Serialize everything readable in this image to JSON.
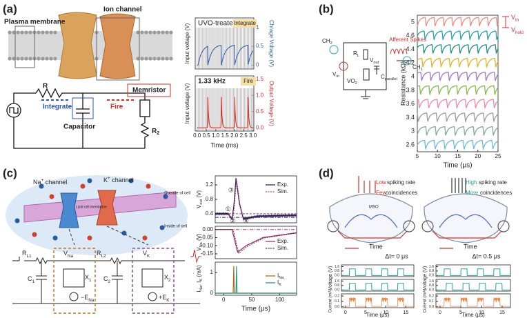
{
  "a": {
    "label": "(a)",
    "plasma_membrane": "Plasma membrane",
    "ion_channel": "Ion channel",
    "r": "R",
    "integrate": "Integrate",
    "fire": "Fire",
    "capacitor": "Capacitor",
    "memristor": "Memristor",
    "r2": [
      "R",
      {
        "sub": "2"
      }
    ],
    "top": {
      "title": "UVO-treated",
      "tag": "Integrate",
      "ylabel": "Input voltage (V)",
      "y2label": "Chrage Voltage (V)",
      "y2lim": [
        -0.1,
        1.25
      ],
      "y2ticks": [
        0,
        0.5,
        1
      ]
    },
    "bottom": {
      "title": "1.33 kHz",
      "tag": "Fire",
      "ylabel": "Input voltage (V)",
      "y2label": "Output Voltage (V)",
      "y2lim": [
        -0.1,
        1.6
      ],
      "y2ticks": [
        {
          "value": 0,
          "label": "0.0"
        },
        0.5,
        {
          "value": 1,
          "label": "1.0"
        },
        1.5
      ],
      "xlabel": "Time (ms)",
      "xlim": [
        -0.1,
        3.05
      ],
      "xticks": [
        {
          "value": 0,
          "label": "0.0"
        },
        0.5,
        {
          "value": 1,
          "label": "1.0"
        },
        1.5,
        {
          "value": 2,
          "label": "2.0"
        },
        2.5,
        {
          "value": 3,
          "label": "3.0"
        }
      ]
    }
  },
  "b": {
    "label": "(b)",
    "ch2": [
      "CH",
      {
        "sub": "2"
      }
    ],
    "vin": [
      "V",
      {
        "sub": "in"
      }
    ],
    "r": [
      "R",
      {
        "sub": "L"
      }
    ],
    "vout": [
      "V",
      {
        "sub": "out"
      }
    ],
    "vo2": [
      "VO",
      {
        "sub": "2"
      }
    ],
    "afferent": "Afferent Spikes",
    "ch1": [
      "CH",
      {
        "sub": "1"
      }
    ],
    "cpar": [
      "C",
      {
        "sub": "parallel"
      }
    ],
    "plot": {
      "ylabel": "Resistance (kΩ)",
      "categories": [
        "5",
        "4.6",
        "4.4",
        "4.2",
        "4",
        "3.8",
        "3.6",
        "3.4",
        "3",
        "2.6"
      ],
      "colors": [
        "#f08a80",
        "#2aa0b8",
        "#1f8a8a",
        "#e3b22a",
        "#a374c4",
        "#86b84a",
        "#e88aa6",
        "#9a9a9a",
        "#86a4a4",
        "#6cb8dc"
      ],
      "xlabel": "Time (μs)",
      "xlim": [
        5,
        25
      ],
      "xticks": [
        5,
        10,
        15,
        20,
        25
      ],
      "vth": [
        "V",
        {
          "sub": "th"
        }
      ],
      "vhold": [
        "V",
        {
          "sub": "hold"
        }
      ]
    }
  },
  "c": {
    "label": "(c)",
    "na_channel": [
      "Na",
      {
        "sup": "+"
      },
      " channel"
    ],
    "k_channel": [
      "K",
      {
        "sup": "+"
      },
      " channel"
    ],
    "outside": "Outside of cell",
    "inside": "Inside of cell",
    "lipid": "Lipid cell membrane",
    "rl1": [
      "R",
      {
        "sub": "L1"
      }
    ],
    "c1": [
      "C",
      {
        "sub": "1"
      }
    ],
    "vna": [
      "V",
      {
        "sub": "Na"
      }
    ],
    "x1": [
      "X",
      {
        "sub": "1"
      }
    ],
    "ena": [
      "−E",
      {
        "sub": "Na"
      }
    ],
    "rl2": [
      "R",
      {
        "sub": "L2"
      }
    ],
    "c2": [
      "C",
      {
        "sub": "2"
      }
    ],
    "vk": [
      "V",
      {
        "sub": "K"
      }
    ],
    "x2": [
      "X",
      {
        "sub": "2"
      }
    ],
    "ek": [
      "+E",
      {
        "sub": "K"
      }
    ],
    "top": {
      "ylabel": [
        "V",
        {
          "sub": "out"
        },
        " (V)"
      ],
      "ylim": [
        0.15,
        1.45
      ],
      "yticks": [
        0.4,
        0.8,
        1.2
      ],
      "legend": [
        "Exp.",
        "Sim."
      ],
      "markers": [
        "①",
        "②",
        "③",
        "④"
      ]
    },
    "mid": {
      "ylabel": [
        "V",
        {
          "sub": "Na"
        },
        " (V)"
      ],
      "ylim": [
        -0.18,
        0.02
      ],
      "yticks": [
        {
          "value": 0,
          "label": "0.00"
        },
        -0.05,
        {
          "value": -0.1,
          "label": "-0.10"
        },
        -0.15
      ],
      "legend": [
        "Exp.",
        "Sim."
      ]
    },
    "bottom": {
      "ylabel": [
        "I",
        {
          "sub": "Na"
        },
        ", I",
        {
          "sub": "K"
        },
        " (mA)"
      ],
      "ylim": [
        -0.1,
        1.5
      ],
      "yticks": [
        0,
        1
      ],
      "legend": [
        [
          "I",
          {
            "sub": "Na"
          }
        ],
        [
          "I",
          {
            "sub": "K"
          }
        ]
      ],
      "xlabel": "Time (μs)",
      "xlim": [
        -15,
        130
      ],
      "xticks": [
        0,
        50,
        100
      ]
    }
  },
  "d": {
    "label": "(d)",
    "left": {
      "rate_word": "Low",
      "rate_rest": " spiking rate",
      "coin_word": "Few",
      "coin_rest": " coincidences",
      "mso": "MSO",
      "time": "Time",
      "dt": "Δt= 0 μs"
    },
    "right": {
      "rate_word": "High",
      "rate_rest": " spiking rate",
      "coin_word": "More",
      "coin_rest": " coincidences",
      "time": "Time",
      "dt": "Δt= 0.5 μs"
    },
    "plots": {
      "vlabel": "Voltage (V)",
      "clabel": "Current (mA)",
      "vlim": [
        -0.2,
        1.9
      ],
      "vticks": [
        {
          "value": 0,
          "label": "0.0"
        },
        0.8,
        1.6
      ],
      "clim": [
        -0.02,
        0.24
      ],
      "cticks": [
        {
          "value": 0,
          "label": "0.0"
        },
        0.1,
        0.2
      ],
      "xlabel": "Time (μs)",
      "xlim": [
        -1,
        17
      ],
      "xticks": [
        0,
        5,
        10,
        15
      ]
    }
  }
}
